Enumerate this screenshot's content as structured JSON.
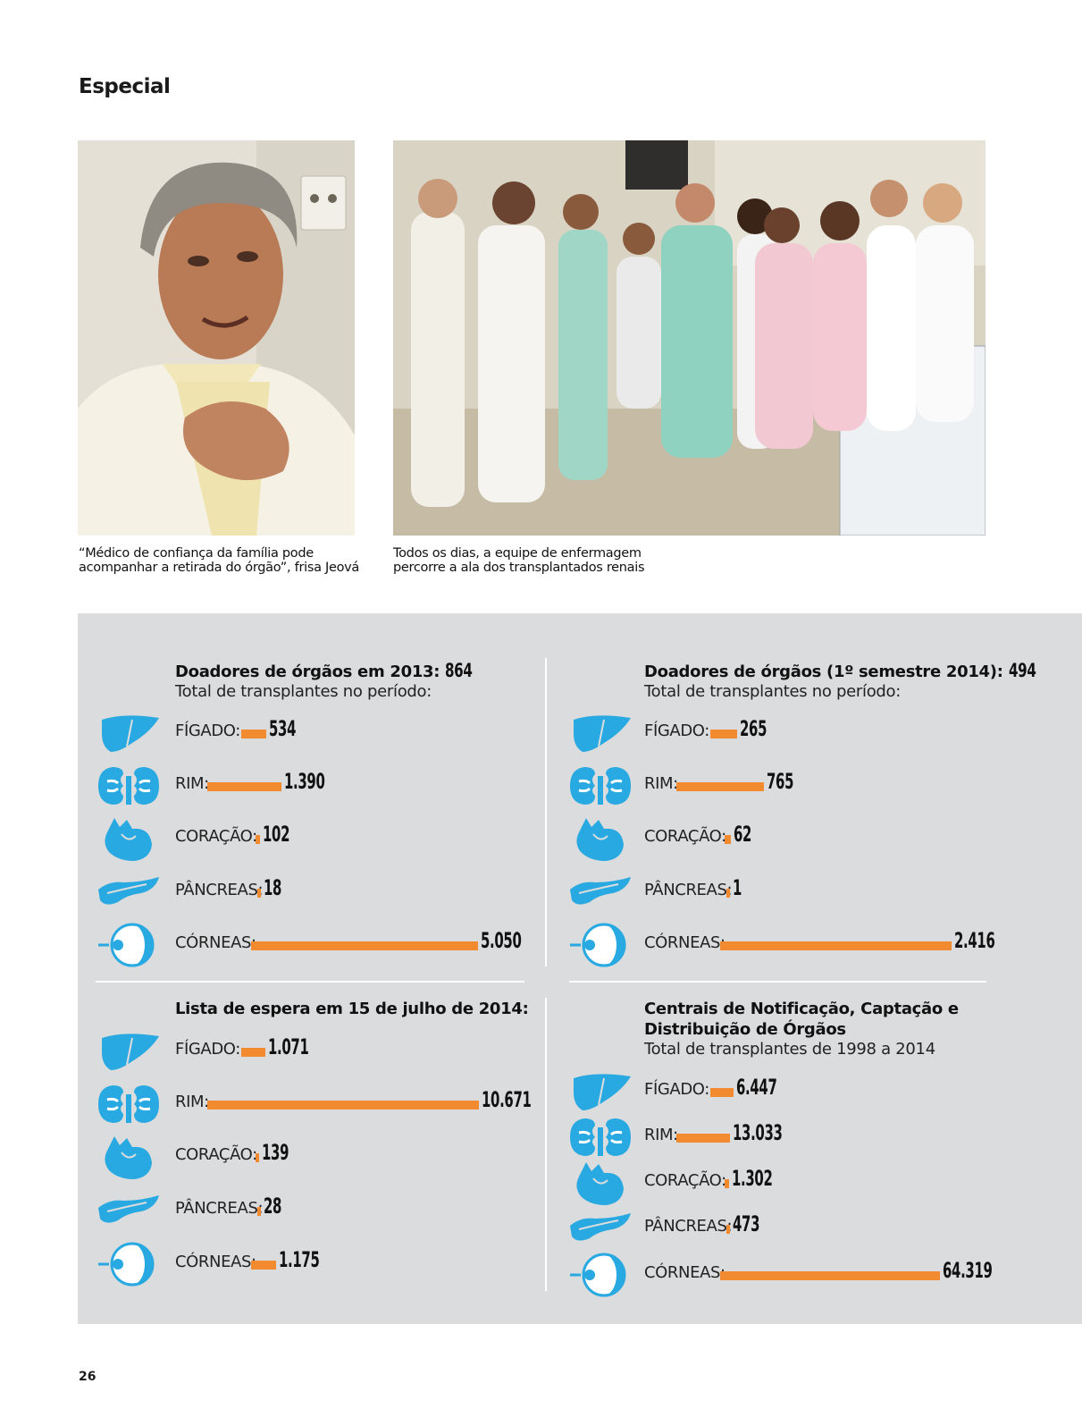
{
  "header": {
    "section": "Especial"
  },
  "photos": {
    "left_caption": [
      "“Médico de confiança da família pode",
      "acompanhar a retirada do órgão”, frisa Jeová"
    ],
    "right_caption": [
      "Todos os dias, a equipe de enfermagem",
      "percorre a ala dos transplantados renais"
    ]
  },
  "colors": {
    "bar": "#f28a30",
    "icon": "#29a9e1",
    "panel": "#dbdcdd"
  },
  "blocks": [
    {
      "title": "Doadores de órgãos em 2013:",
      "title_value": "864",
      "subtitle": "Total de transplantes no período:",
      "rows": [
        {
          "icon": "liver-icon",
          "label": "FÍGADO:",
          "value": "534",
          "n": 534
        },
        {
          "icon": "kidney-icon",
          "label": "RIM:",
          "value": "1.390",
          "n": 1390
        },
        {
          "icon": "heart-icon",
          "label": "CORAÇÃO:",
          "value": "102",
          "n": 102
        },
        {
          "icon": "pancreas-icon",
          "label": "PÂNCREAS:",
          "value": "18",
          "n": 18
        },
        {
          "icon": "eye-icon",
          "label": "CÓRNEAS:",
          "value": "5.050",
          "n": 5050
        }
      ]
    },
    {
      "title": "Doadores de órgãos (1º semestre 2014):",
      "title_value": "494",
      "subtitle": "Total de transplantes no período:",
      "rows": [
        {
          "icon": "liver-icon",
          "label": "FÍGADO:",
          "value": "265",
          "n": 265
        },
        {
          "icon": "kidney-icon",
          "label": "RIM:",
          "value": "765",
          "n": 765
        },
        {
          "icon": "heart-icon",
          "label": "CORAÇÃO:",
          "value": "62",
          "n": 62
        },
        {
          "icon": "pancreas-icon",
          "label": "PÂNCREAS:",
          "value": "1",
          "n": 1
        },
        {
          "icon": "eye-icon",
          "label": "CÓRNEAS:",
          "value": "2.416",
          "n": 2416
        }
      ]
    },
    {
      "title": "Lista de espera em 15 de julho de 2014:",
      "title_value": "",
      "subtitle": "",
      "rows": [
        {
          "icon": "liver-icon",
          "label": "FÍGADO:",
          "value": "1.071",
          "n": 1071
        },
        {
          "icon": "kidney-icon",
          "label": "RIM:",
          "value": "10.671",
          "n": 10671
        },
        {
          "icon": "heart-icon",
          "label": "CORAÇÃO:",
          "value": "139",
          "n": 139
        },
        {
          "icon": "pancreas-icon",
          "label": "PÂNCREAS:",
          "value": "28",
          "n": 28
        },
        {
          "icon": "eye-icon",
          "label": "CÓRNEAS:",
          "value": "1.175",
          "n": 1175
        }
      ]
    },
    {
      "title": "Centrais de Notificação, Captação e",
      "title2": "Distribuição de Órgãos",
      "title_value": "",
      "subtitle": "Total de transplantes de 1998 a 2014",
      "rows": [
        {
          "icon": "liver-icon",
          "label": "FÍGADO:",
          "value": "6.447",
          "n": 6447
        },
        {
          "icon": "kidney-icon",
          "label": "RIM:",
          "value": "13.033",
          "n": 13033
        },
        {
          "icon": "heart-icon",
          "label": "CORAÇÃO:",
          "value": "1.302",
          "n": 1302
        },
        {
          "icon": "pancreas-icon",
          "label": "PÂNCREAS:",
          "value": "473",
          "n": 473
        },
        {
          "icon": "eye-icon",
          "label": "CÓRNEAS:",
          "value": "64.319",
          "n": 64319
        }
      ]
    }
  ],
  "footer": {
    "page_number": "26"
  }
}
